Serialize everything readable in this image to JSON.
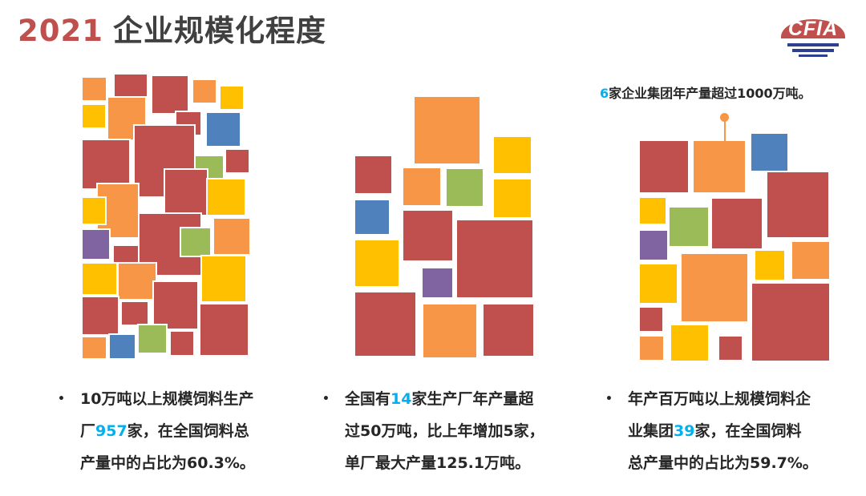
{
  "title": {
    "year": "2021",
    "main": "企业规模化程度"
  },
  "logo": {
    "text": "CFIA"
  },
  "colors": {
    "red": "#c0504d",
    "orange": "#f79646",
    "yellow": "#ffc000",
    "blue": "#4f81bd",
    "green": "#9bbb59",
    "purple": "#8064a2",
    "highlight": "#00b0f0"
  },
  "top_note": {
    "num": "6",
    "text": "家企业集团年产量超过1000万吨。"
  },
  "bullets": [
    {
      "line1": "10万吨以上规模饲料生产",
      "line2_pre": "厂",
      "line2_num": "957",
      "line2_post": "家，在全国饲料总",
      "line3": "产量中的占比为60.3%。"
    },
    {
      "line1_pre": "全国有",
      "line1_num": "14",
      "line1_post": "家生产厂年产量超",
      "line2": "过50万吨，比上年增加5家，",
      "line3": "单厂最大产量125.1万吨。"
    },
    {
      "line1": "年产百万吨以上规模饲料企",
      "line2_pre": "业集团",
      "line2_num": "39",
      "line2_post": "家，在全国饲料",
      "line3": "总产量中的占比为59.7%。"
    }
  ]
}
